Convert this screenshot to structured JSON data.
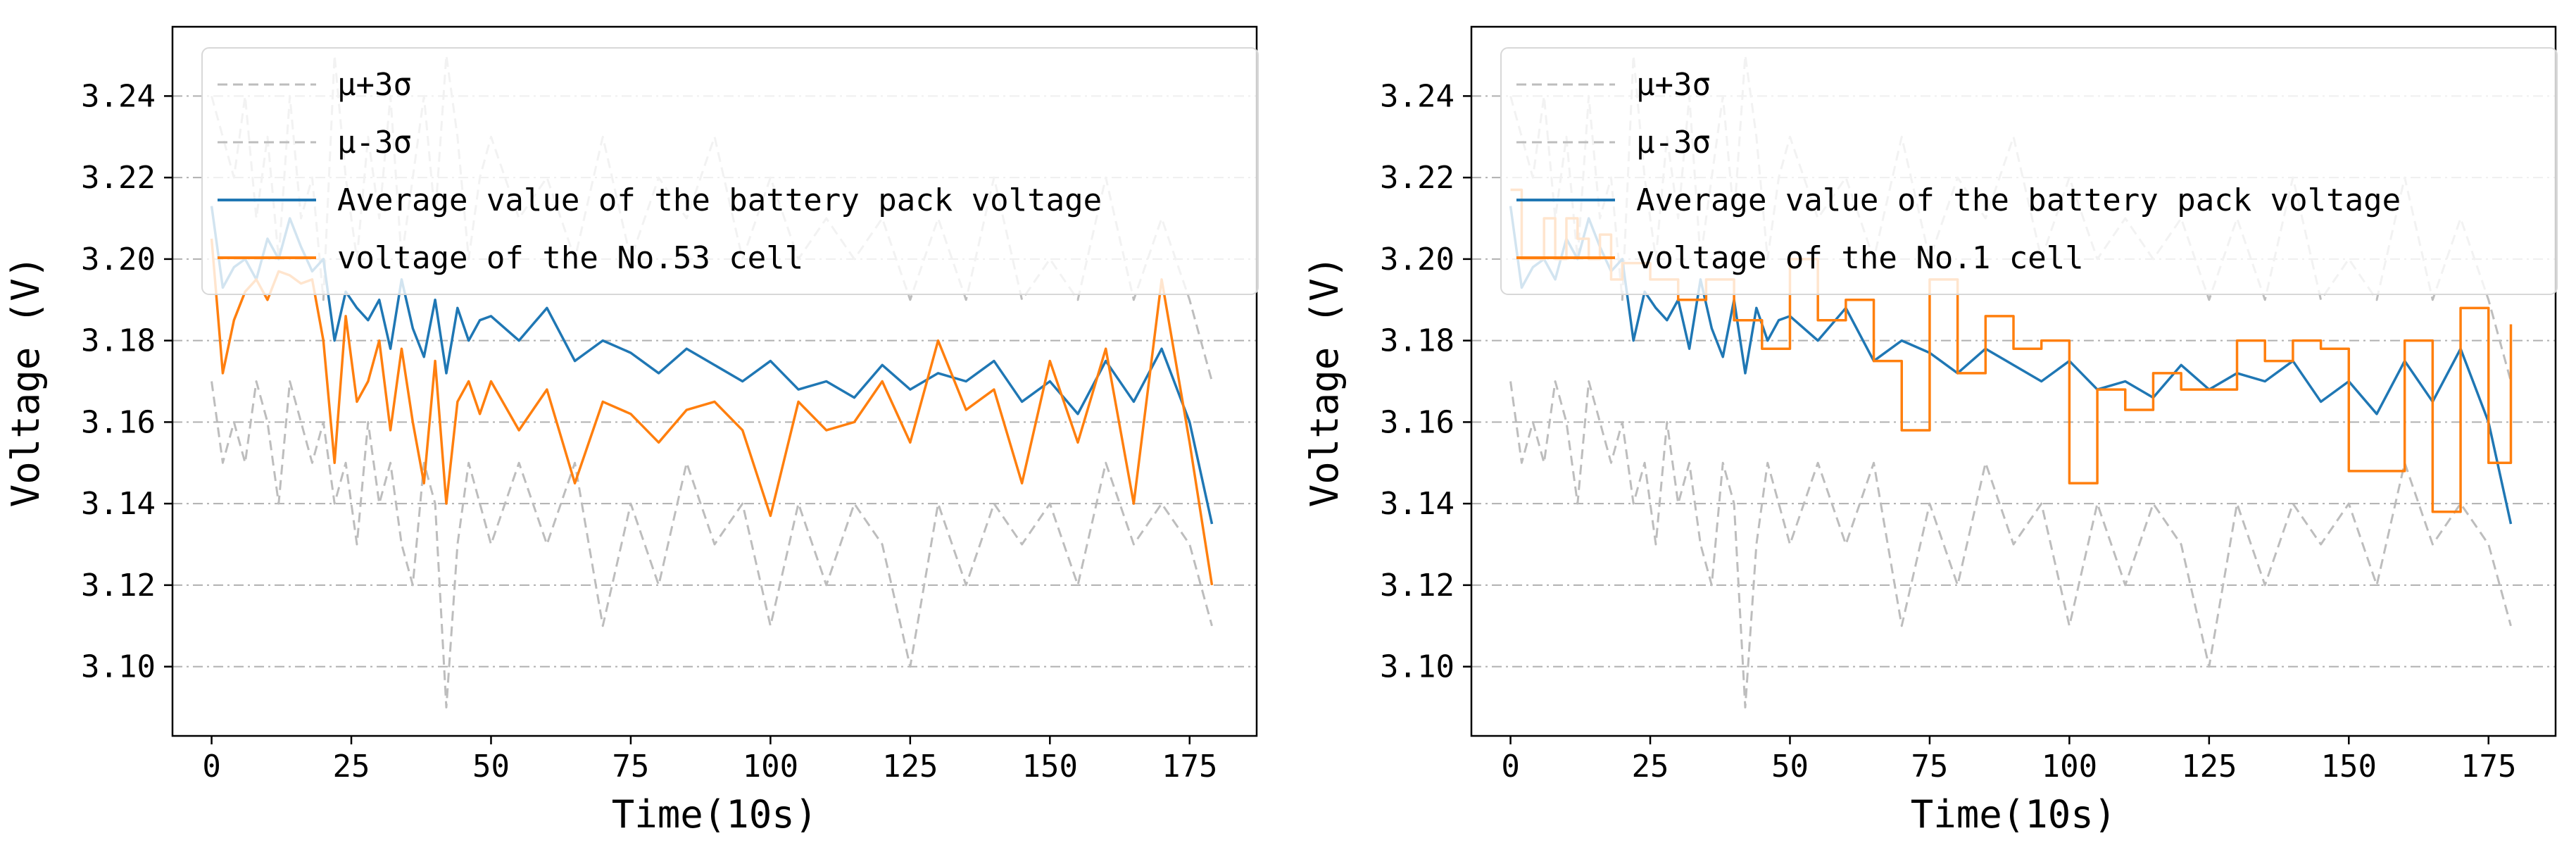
{
  "chart_data": [
    {
      "type": "line",
      "title": "",
      "xlabel": "Time(10s)",
      "ylabel": "Voltage (V)",
      "xlim": [
        -7,
        187
      ],
      "ylim": [
        3.083,
        3.257
      ],
      "xticks": [
        0,
        25,
        50,
        75,
        100,
        125,
        150,
        175
      ],
      "yticks": [
        3.1,
        3.12,
        3.14,
        3.16,
        3.18,
        3.2,
        3.22,
        3.24
      ],
      "xtick_labels": [
        "0",
        "25",
        "50",
        "75",
        "100",
        "125",
        "150",
        "175"
      ],
      "ytick_labels": [
        "3.10",
        "3.12",
        "3.14",
        "3.16",
        "3.18",
        "3.20",
        "3.22",
        "3.24"
      ],
      "grid": "horizontal dash-dot",
      "legend_location": "top-right",
      "legend": [
        "μ+3σ",
        "μ-3σ",
        "Average value of the battery pack voltage",
        "voltage of the No.53 cell"
      ],
      "series": [
        {
          "name": "μ+3σ",
          "color": "#bdbdbd",
          "style": "dashed",
          "x": [
            0,
            2,
            4,
            6,
            8,
            10,
            12,
            14,
            16,
            18,
            20,
            22,
            24,
            26,
            28,
            30,
            32,
            34,
            36,
            38,
            40,
            42,
            44,
            46,
            48,
            50,
            55,
            60,
            65,
            70,
            75,
            80,
            85,
            90,
            95,
            100,
            105,
            110,
            115,
            120,
            125,
            130,
            135,
            140,
            145,
            150,
            155,
            160,
            165,
            170,
            175,
            179
          ],
          "values": [
            3.24,
            3.23,
            3.22,
            3.24,
            3.21,
            3.23,
            3.2,
            3.24,
            3.21,
            3.22,
            3.19,
            3.25,
            3.22,
            3.2,
            3.23,
            3.21,
            3.24,
            3.2,
            3.22,
            3.24,
            3.21,
            3.25,
            3.23,
            3.2,
            3.22,
            3.23,
            3.21,
            3.22,
            3.2,
            3.23,
            3.2,
            3.22,
            3.21,
            3.23,
            3.2,
            3.22,
            3.2,
            3.21,
            3.2,
            3.21,
            3.19,
            3.21,
            3.19,
            3.22,
            3.19,
            3.2,
            3.19,
            3.22,
            3.19,
            3.21,
            3.19,
            3.17
          ]
        },
        {
          "name": "μ-3σ",
          "color": "#bdbdbd",
          "style": "dashed",
          "x": [
            0,
            2,
            4,
            6,
            8,
            10,
            12,
            14,
            16,
            18,
            20,
            22,
            24,
            26,
            28,
            30,
            32,
            34,
            36,
            38,
            40,
            42,
            44,
            46,
            48,
            50,
            55,
            60,
            65,
            70,
            75,
            80,
            85,
            90,
            95,
            100,
            105,
            110,
            115,
            120,
            125,
            130,
            135,
            140,
            145,
            150,
            155,
            160,
            165,
            170,
            175,
            179
          ],
          "values": [
            3.17,
            3.15,
            3.16,
            3.15,
            3.17,
            3.16,
            3.14,
            3.17,
            3.16,
            3.15,
            3.16,
            3.14,
            3.15,
            3.13,
            3.16,
            3.14,
            3.15,
            3.13,
            3.12,
            3.15,
            3.14,
            3.09,
            3.13,
            3.15,
            3.14,
            3.13,
            3.15,
            3.13,
            3.15,
            3.11,
            3.14,
            3.12,
            3.15,
            3.13,
            3.14,
            3.11,
            3.14,
            3.12,
            3.14,
            3.13,
            3.1,
            3.14,
            3.12,
            3.14,
            3.13,
            3.14,
            3.12,
            3.15,
            3.13,
            3.14,
            3.13,
            3.11
          ]
        },
        {
          "name": "Average value of the battery pack voltage",
          "color": "#1f77b4",
          "style": "solid",
          "x": [
            0,
            2,
            4,
            6,
            8,
            10,
            12,
            14,
            16,
            18,
            20,
            22,
            24,
            26,
            28,
            30,
            32,
            34,
            36,
            38,
            40,
            42,
            44,
            46,
            48,
            50,
            55,
            60,
            65,
            70,
            75,
            80,
            85,
            90,
            95,
            100,
            105,
            110,
            115,
            120,
            125,
            130,
            135,
            140,
            145,
            150,
            155,
            160,
            165,
            170,
            175,
            179
          ],
          "values": [
            3.213,
            3.193,
            3.198,
            3.2,
            3.195,
            3.205,
            3.2,
            3.21,
            3.203,
            3.197,
            3.2,
            3.18,
            3.192,
            3.188,
            3.185,
            3.19,
            3.178,
            3.195,
            3.183,
            3.176,
            3.19,
            3.172,
            3.188,
            3.18,
            3.185,
            3.186,
            3.18,
            3.188,
            3.175,
            3.18,
            3.177,
            3.172,
            3.178,
            3.174,
            3.17,
            3.175,
            3.168,
            3.17,
            3.166,
            3.174,
            3.168,
            3.172,
            3.17,
            3.175,
            3.165,
            3.17,
            3.162,
            3.175,
            3.165,
            3.178,
            3.16,
            3.135
          ]
        },
        {
          "name": "voltage of the No.53 cell",
          "color": "#ff7f0e",
          "style": "solid",
          "x": [
            0,
            2,
            4,
            6,
            8,
            10,
            12,
            14,
            16,
            18,
            20,
            22,
            24,
            26,
            28,
            30,
            32,
            34,
            36,
            38,
            40,
            42,
            44,
            46,
            48,
            50,
            55,
            60,
            65,
            70,
            75,
            80,
            85,
            90,
            95,
            100,
            105,
            110,
            115,
            120,
            125,
            130,
            135,
            140,
            145,
            150,
            155,
            160,
            165,
            170,
            175,
            179
          ],
          "values": [
            3.205,
            3.172,
            3.185,
            3.192,
            3.195,
            3.19,
            3.197,
            3.196,
            3.194,
            3.195,
            3.18,
            3.15,
            3.186,
            3.165,
            3.17,
            3.18,
            3.158,
            3.178,
            3.16,
            3.145,
            3.175,
            3.14,
            3.165,
            3.17,
            3.162,
            3.17,
            3.158,
            3.168,
            3.145,
            3.165,
            3.162,
            3.155,
            3.163,
            3.165,
            3.158,
            3.137,
            3.165,
            3.158,
            3.16,
            3.17,
            3.155,
            3.18,
            3.163,
            3.168,
            3.145,
            3.175,
            3.155,
            3.178,
            3.14,
            3.195,
            3.155,
            3.12
          ]
        }
      ]
    },
    {
      "type": "line",
      "title": "",
      "xlabel": "Time(10s)",
      "ylabel": "Voltage (V)",
      "xlim": [
        -7,
        187
      ],
      "ylim": [
        3.083,
        3.257
      ],
      "xticks": [
        0,
        25,
        50,
        75,
        100,
        125,
        150,
        175
      ],
      "yticks": [
        3.1,
        3.12,
        3.14,
        3.16,
        3.18,
        3.2,
        3.22,
        3.24
      ],
      "xtick_labels": [
        "0",
        "25",
        "50",
        "75",
        "100",
        "125",
        "150",
        "175"
      ],
      "ytick_labels": [
        "3.10",
        "3.12",
        "3.14",
        "3.16",
        "3.18",
        "3.20",
        "3.22",
        "3.24"
      ],
      "grid": "horizontal dash-dot",
      "legend_location": "top-right",
      "legend": [
        "μ+3σ",
        "μ-3σ",
        "Average value of the battery pack voltage",
        "voltage of the No.1 cell"
      ],
      "series": [
        {
          "name": "μ+3σ",
          "color": "#bdbdbd",
          "style": "dashed",
          "x": [
            0,
            2,
            4,
            6,
            8,
            10,
            12,
            14,
            16,
            18,
            20,
            22,
            24,
            26,
            28,
            30,
            32,
            34,
            36,
            38,
            40,
            42,
            44,
            46,
            48,
            50,
            55,
            60,
            65,
            70,
            75,
            80,
            85,
            90,
            95,
            100,
            105,
            110,
            115,
            120,
            125,
            130,
            135,
            140,
            145,
            150,
            155,
            160,
            165,
            170,
            175,
            179
          ],
          "values": [
            3.24,
            3.23,
            3.22,
            3.24,
            3.21,
            3.23,
            3.2,
            3.24,
            3.21,
            3.22,
            3.19,
            3.25,
            3.22,
            3.2,
            3.23,
            3.21,
            3.24,
            3.2,
            3.22,
            3.24,
            3.21,
            3.25,
            3.23,
            3.2,
            3.22,
            3.23,
            3.21,
            3.22,
            3.2,
            3.23,
            3.2,
            3.22,
            3.21,
            3.23,
            3.2,
            3.22,
            3.2,
            3.21,
            3.2,
            3.21,
            3.19,
            3.21,
            3.19,
            3.22,
            3.19,
            3.2,
            3.19,
            3.22,
            3.19,
            3.21,
            3.19,
            3.17
          ]
        },
        {
          "name": "μ-3σ",
          "color": "#bdbdbd",
          "style": "dashed",
          "x": [
            0,
            2,
            4,
            6,
            8,
            10,
            12,
            14,
            16,
            18,
            20,
            22,
            24,
            26,
            28,
            30,
            32,
            34,
            36,
            38,
            40,
            42,
            44,
            46,
            48,
            50,
            55,
            60,
            65,
            70,
            75,
            80,
            85,
            90,
            95,
            100,
            105,
            110,
            115,
            120,
            125,
            130,
            135,
            140,
            145,
            150,
            155,
            160,
            165,
            170,
            175,
            179
          ],
          "values": [
            3.17,
            3.15,
            3.16,
            3.15,
            3.17,
            3.16,
            3.14,
            3.17,
            3.16,
            3.15,
            3.16,
            3.14,
            3.15,
            3.13,
            3.16,
            3.14,
            3.15,
            3.13,
            3.12,
            3.15,
            3.14,
            3.09,
            3.13,
            3.15,
            3.14,
            3.13,
            3.15,
            3.13,
            3.15,
            3.11,
            3.14,
            3.12,
            3.15,
            3.13,
            3.14,
            3.11,
            3.14,
            3.12,
            3.14,
            3.13,
            3.1,
            3.14,
            3.12,
            3.14,
            3.13,
            3.14,
            3.12,
            3.15,
            3.13,
            3.14,
            3.13,
            3.11
          ]
        },
        {
          "name": "Average value of the battery pack voltage",
          "color": "#1f77b4",
          "style": "solid",
          "x": [
            0,
            2,
            4,
            6,
            8,
            10,
            12,
            14,
            16,
            18,
            20,
            22,
            24,
            26,
            28,
            30,
            32,
            34,
            36,
            38,
            40,
            42,
            44,
            46,
            48,
            50,
            55,
            60,
            65,
            70,
            75,
            80,
            85,
            90,
            95,
            100,
            105,
            110,
            115,
            120,
            125,
            130,
            135,
            140,
            145,
            150,
            155,
            160,
            165,
            170,
            175,
            179
          ],
          "values": [
            3.213,
            3.193,
            3.198,
            3.2,
            3.195,
            3.205,
            3.2,
            3.21,
            3.203,
            3.197,
            3.2,
            3.18,
            3.192,
            3.188,
            3.185,
            3.19,
            3.178,
            3.195,
            3.183,
            3.176,
            3.19,
            3.172,
            3.188,
            3.18,
            3.185,
            3.186,
            3.18,
            3.188,
            3.175,
            3.18,
            3.177,
            3.172,
            3.178,
            3.174,
            3.17,
            3.175,
            3.168,
            3.17,
            3.166,
            3.174,
            3.168,
            3.172,
            3.17,
            3.175,
            3.165,
            3.17,
            3.162,
            3.175,
            3.165,
            3.178,
            3.16,
            3.135
          ]
        },
        {
          "name": "voltage of the No.1 cell",
          "color": "#ff7f0e",
          "style": "solid-stepped",
          "x": [
            0,
            2,
            4,
            6,
            8,
            10,
            12,
            14,
            16,
            18,
            20,
            25,
            30,
            35,
            40,
            45,
            50,
            55,
            60,
            65,
            70,
            75,
            80,
            85,
            90,
            95,
            100,
            105,
            110,
            115,
            120,
            125,
            130,
            135,
            140,
            145,
            150,
            155,
            160,
            165,
            170,
            175,
            179
          ],
          "values": [
            3.217,
            3.2,
            3.2,
            3.21,
            3.2,
            3.21,
            3.205,
            3.2,
            3.206,
            3.195,
            3.199,
            3.195,
            3.19,
            3.195,
            3.185,
            3.178,
            3.2,
            3.185,
            3.19,
            3.175,
            3.158,
            3.195,
            3.172,
            3.186,
            3.178,
            3.18,
            3.145,
            3.168,
            3.163,
            3.172,
            3.168,
            3.168,
            3.18,
            3.175,
            3.18,
            3.178,
            3.148,
            3.148,
            3.18,
            3.138,
            3.188,
            3.15,
            3.184
          ]
        }
      ]
    }
  ]
}
